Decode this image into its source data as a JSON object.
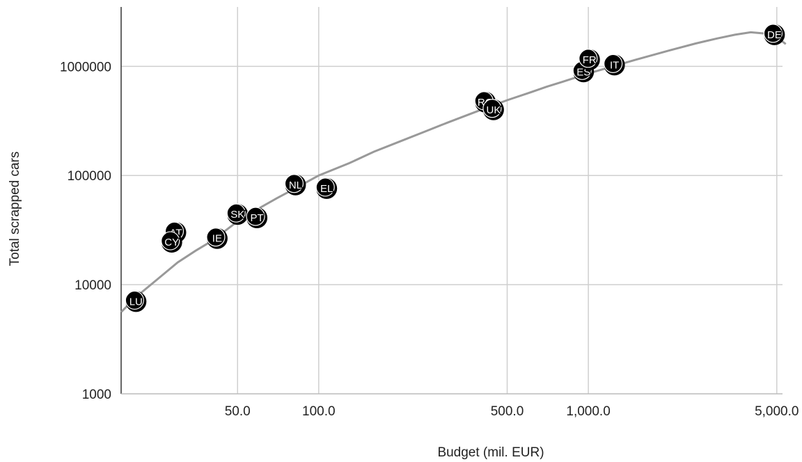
{
  "chart_data": {
    "type": "scatter",
    "title": "",
    "xlabel": "Budget (mil. EUR)",
    "ylabel": "Total scrapped cars",
    "xscale": "log",
    "yscale": "log",
    "xlim": [
      18.5,
      5250
    ],
    "ylim": [
      1000,
      3500000
    ],
    "grid": true,
    "x_ticks": [
      {
        "value": 50,
        "label": "50.0"
      },
      {
        "value": 100,
        "label": "100.0"
      },
      {
        "value": 500,
        "label": "500.0"
      },
      {
        "value": 1000,
        "label": "1,000.0"
      },
      {
        "value": 5000,
        "label": "5,000.0"
      }
    ],
    "y_ticks": [
      {
        "value": 1000,
        "label": "1000"
      },
      {
        "value": 10000,
        "label": "10000"
      },
      {
        "value": 100000,
        "label": "100000"
      },
      {
        "value": 1000000,
        "label": "1000000"
      }
    ],
    "points": [
      {
        "label": "LU",
        "x": 21,
        "y": 7000
      },
      {
        "label": "AT",
        "x": 29.5,
        "y": 30000
      },
      {
        "label": "CY",
        "x": 28.5,
        "y": 24500
      },
      {
        "label": "IE",
        "x": 42,
        "y": 26500
      },
      {
        "label": "SK",
        "x": 50,
        "y": 44000
      },
      {
        "label": "PT",
        "x": 59,
        "y": 41000
      },
      {
        "label": "NL",
        "x": 82,
        "y": 82000
      },
      {
        "label": "EL",
        "x": 107,
        "y": 76000
      },
      {
        "label": "RO",
        "x": 415,
        "y": 470000
      },
      {
        "label": "UK",
        "x": 445,
        "y": 400000
      },
      {
        "label": "ES",
        "x": 960,
        "y": 890000
      },
      {
        "label": "FR",
        "x": 1010,
        "y": 1150000
      },
      {
        "label": "IT",
        "x": 1250,
        "y": 1030000
      },
      {
        "label": "DE",
        "x": 4900,
        "y": 1950000
      }
    ],
    "trendline": {
      "type": "polynomial-log",
      "x": [
        18.5,
        21,
        25,
        30,
        35,
        40,
        50,
        60,
        70,
        80,
        100,
        130,
        160,
        200,
        250,
        300,
        400,
        500,
        600,
        700,
        800,
        1000,
        1200,
        1500,
        2000,
        2500,
        3000,
        3500,
        4000,
        4500,
        5000,
        5400
      ],
      "y": [
        5600,
        7700,
        11000,
        16000,
        20500,
        25000,
        38000,
        50000,
        62000,
        74000,
        100000,
        130000,
        165000,
        205000,
        255000,
        305000,
        400000,
        490000,
        570000,
        650000,
        720000,
        860000,
        980000,
        1150000,
        1400000,
        1620000,
        1800000,
        1950000,
        2050000,
        2000000,
        1850000,
        1600000
      ]
    }
  }
}
